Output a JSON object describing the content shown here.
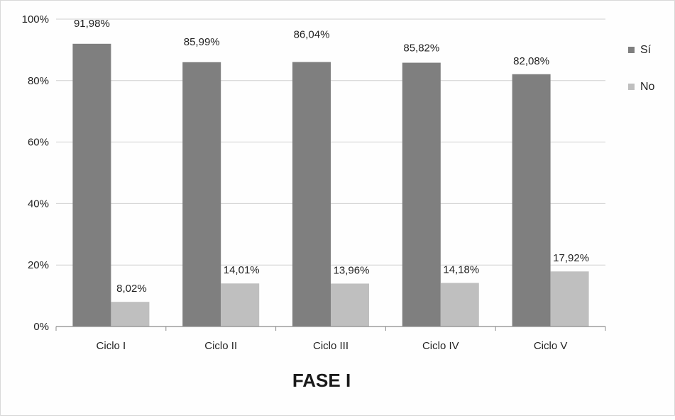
{
  "chart_data": {
    "type": "bar",
    "title": "FASE I",
    "categories": [
      "Ciclo I",
      "Ciclo II",
      "Ciclo III",
      "Ciclo IV",
      "Ciclo V"
    ],
    "series": [
      {
        "name": "Sí",
        "color": "#7f7f7f",
        "values": [
          91.98,
          85.99,
          86.04,
          85.82,
          82.08
        ],
        "labels": [
          "91,98%",
          "85,99%",
          "86,04%",
          "85,82%",
          "82,08%"
        ]
      },
      {
        "name": "No",
        "color": "#bfbfbf",
        "values": [
          8.02,
          14.01,
          13.96,
          14.18,
          17.92
        ],
        "labels": [
          "8,02%",
          "14,01%",
          "13,96%",
          "14,18%",
          "17,92%"
        ]
      }
    ],
    "ylim": [
      0,
      100
    ],
    "yticks": [
      0,
      20,
      40,
      60,
      80,
      100
    ],
    "ytick_labels": [
      "0%",
      "20%",
      "40%",
      "60%",
      "80%",
      "100%"
    ],
    "grid": true,
    "legend_position": "right",
    "xlabel": "",
    "ylabel": ""
  }
}
